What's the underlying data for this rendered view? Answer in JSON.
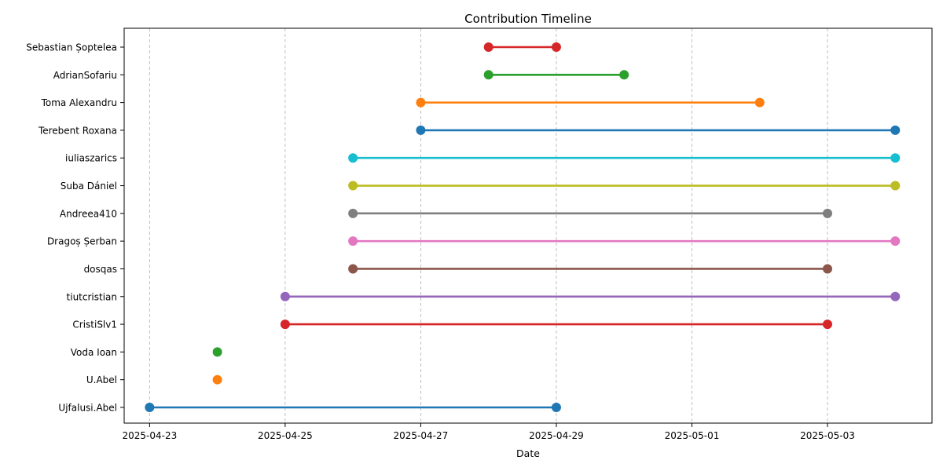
{
  "chart_data": {
    "type": "timeline",
    "title": "Contribution Timeline",
    "xlabel": "Date",
    "ylabel": "",
    "grid": "x-dashed",
    "x_ticks": [
      "2025-04-23",
      "2025-04-25",
      "2025-04-27",
      "2025-04-29",
      "2025-05-01",
      "2025-05-03"
    ],
    "xlim": [
      "2025-04-22T15:00",
      "2025-05-04T13:00"
    ],
    "series": [
      {
        "name": "Ujfalusi.Abel",
        "start": "2025-04-23",
        "end": "2025-04-29",
        "color": "#1f77b4"
      },
      {
        "name": "U.Abel",
        "start": "2025-04-24",
        "end": "2025-04-24",
        "color": "#ff7f0e"
      },
      {
        "name": "Voda Ioan",
        "start": "2025-04-24",
        "end": "2025-04-24",
        "color": "#2ca02c"
      },
      {
        "name": "CristiSlv1",
        "start": "2025-04-25",
        "end": "2025-05-03",
        "color": "#d62728"
      },
      {
        "name": "tiutcristian",
        "start": "2025-04-25",
        "end": "2025-05-04",
        "color": "#9467bd"
      },
      {
        "name": "dosqas",
        "start": "2025-04-26",
        "end": "2025-05-03",
        "color": "#8c564b"
      },
      {
        "name": "Dragoș Șerban",
        "start": "2025-04-26",
        "end": "2025-05-04",
        "color": "#e377c2"
      },
      {
        "name": "Andreea410",
        "start": "2025-04-26",
        "end": "2025-05-03",
        "color": "#7f7f7f"
      },
      {
        "name": "Suba Dániel",
        "start": "2025-04-26",
        "end": "2025-05-04",
        "color": "#bcbd22"
      },
      {
        "name": "iuliaszarics",
        "start": "2025-04-26",
        "end": "2025-05-04",
        "color": "#17becf"
      },
      {
        "name": "Terebent Roxana",
        "start": "2025-04-27",
        "end": "2025-05-04",
        "color": "#1f77b4"
      },
      {
        "name": "Toma Alexandru",
        "start": "2025-04-27",
        "end": "2025-05-02",
        "color": "#ff7f0e"
      },
      {
        "name": "AdrianSofariu",
        "start": "2025-04-28",
        "end": "2025-04-30",
        "color": "#2ca02c"
      },
      {
        "name": "Sebastian Șoptelea",
        "start": "2025-04-28",
        "end": "2025-04-29",
        "color": "#d62728"
      }
    ]
  }
}
